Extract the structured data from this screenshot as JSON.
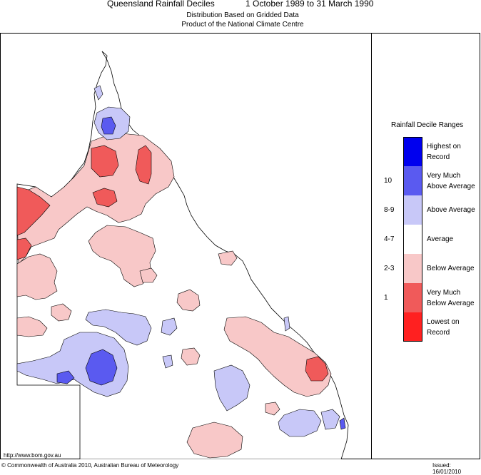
{
  "header": {
    "title_left": "Queensland Rainfall Deciles",
    "title_right": "1 October 1989 to 31 March 1990",
    "subtitle_1": "Distribution Based on Gridded Data",
    "subtitle_2": "Product of the National Climate Centre"
  },
  "legend": {
    "title": "Rainfall Decile Ranges",
    "items": [
      {
        "decile": "",
        "label": "Highest on Record",
        "line1": "Highest on",
        "line2": "Record",
        "color": "#0000ee"
      },
      {
        "decile": "10",
        "label": "Very Much Above Average",
        "line1": "Very Much",
        "line2": "Above Average",
        "color": "#5a5af0"
      },
      {
        "decile": "8-9",
        "label": "Above Average",
        "line1": "Above Average",
        "line2": "",
        "color": "#c8c8f8"
      },
      {
        "decile": "4-7",
        "label": "Average",
        "line1": "Average",
        "line2": "",
        "color": "#ffffff"
      },
      {
        "decile": "2-3",
        "label": "Below Average",
        "line1": "Below Average",
        "line2": "",
        "color": "#f8c8c8"
      },
      {
        "decile": "1",
        "label": "Very Much Below Average",
        "line1": "Very Much",
        "line2": "Below Average",
        "color": "#f05a5a"
      },
      {
        "decile": "",
        "label": "Lowest on Record",
        "line1": "Lowest on",
        "line2": "Record",
        "color": "#ff2020"
      }
    ]
  },
  "footer": {
    "url": "http://www.bom.gov.au",
    "copyright": "© Commonwealth of Australia 2010, Australian Bureau of Meteorology",
    "issued": "Issued: 16/01/2010"
  }
}
